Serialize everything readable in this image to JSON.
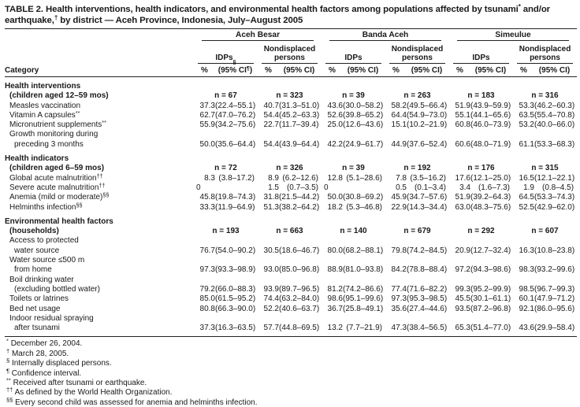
{
  "colors": {
    "ink": "#191919",
    "background": "#ffffff",
    "rule": "#222222"
  },
  "title": {
    "line1": [
      {
        "t": "TABLE 2. Health interventions, health indicators, and environmental health factors among populations affected by tsunami"
      },
      {
        "sup": "*"
      },
      {
        "t": " and/or"
      }
    ],
    "line2": [
      {
        "t": "earthquake,"
      },
      {
        "sup": "†"
      },
      {
        "t": " by district — Aceh Province, Indonesia, July–August 2005"
      }
    ]
  },
  "table": {
    "groups": [
      {
        "name": "Aceh Besar",
        "subgroups": [
          {
            "segments": [
              {
                "t": "IDPs"
              },
              {
                "sup": "§"
              }
            ]
          },
          {
            "segments": [
              {
                "t": "Nondisplaced persons"
              }
            ]
          }
        ]
      },
      {
        "name": "Banda Aceh",
        "subgroups": [
          {
            "segments": [
              {
                "t": "IDPs"
              }
            ]
          },
          {
            "segments": [
              {
                "t": "Nondisplaced persons"
              }
            ]
          }
        ]
      },
      {
        "name": "Simeulue",
        "subgroups": [
          {
            "segments": [
              {
                "t": "IDPs"
              }
            ]
          },
          {
            "segments": [
              {
                "t": "Nondisplaced persons"
              }
            ]
          }
        ]
      }
    ],
    "columns": {
      "category_label": "Category",
      "pct_label": "%",
      "ci_label": "(95% CI)",
      "ci_label_first": [
        {
          "t": "(95% CI"
        },
        {
          "sup": "¶"
        },
        {
          "t": ")"
        }
      ]
    },
    "sections": [
      {
        "header": "Health interventions",
        "subheader": "(children aged 12–59 mos)",
        "n": [
          "n = 67",
          "n = 323",
          "n = 39",
          "n = 263",
          "n = 183",
          "n = 316"
        ],
        "rows": [
          {
            "lines": [
              "Measles vaccination"
            ],
            "values": [
              [
                "37.3",
                "(22.4–55.1)"
              ],
              [
                "40.7",
                "(31.3–51.0)"
              ],
              [
                "43.6",
                "(30.0–58.2)"
              ],
              [
                "58.2",
                "(49.5–66.4)"
              ],
              [
                "51.9",
                "(43.9–59.9)"
              ],
              [
                "53.3",
                "(46.2–60.3)"
              ]
            ]
          },
          {
            "lines": [
              "Vitamin A capsules"
            ],
            "sup": "**",
            "values": [
              [
                "62.7",
                "(47.0–76.2)"
              ],
              [
                "54.4",
                "(45.2–63.3)"
              ],
              [
                "52.6",
                "(39.8–65.2)"
              ],
              [
                "64.4",
                "(54.9–73.0)"
              ],
              [
                "55.1",
                "(44.1–65.6)"
              ],
              [
                "63.5",
                "(55.4–70.8)"
              ]
            ]
          },
          {
            "lines": [
              "Micronutrient supplements"
            ],
            "sup": "**",
            "values": [
              [
                "55.9",
                "(34.2–75.6)"
              ],
              [
                "22.7",
                "(11.7–39.4)"
              ],
              [
                "25.0",
                "(12.6–43.6)"
              ],
              [
                "15.1",
                "(10.2–21.9)"
              ],
              [
                "60.8",
                "(46.0–73.9)"
              ],
              [
                "53.2",
                "(40.0–66.0)"
              ]
            ]
          },
          {
            "lines": [
              "Growth monitoring during",
              "preceding 3 months"
            ],
            "values": [
              [
                "50.0",
                "(35.6–64.4)"
              ],
              [
                "54.4",
                "(43.9–64.4)"
              ],
              [
                "42.2",
                "(24.9–61.7)"
              ],
              [
                "44.9",
                "(37.6–52.4)"
              ],
              [
                "60.6",
                "(48.0–71.9)"
              ],
              [
                "61.1",
                "(53.3–68.3)"
              ]
            ]
          }
        ]
      },
      {
        "header": "Health indicators",
        "subheader": "(children aged 6–59 mos)",
        "n": [
          "n = 72",
          "n = 326",
          "n = 39",
          "n = 192",
          "n = 176",
          "n = 315"
        ],
        "rows": [
          {
            "lines": [
              "Global acute malnutrition"
            ],
            "sup": "††",
            "values": [
              [
                "8.3",
                "(3.8–17.2)"
              ],
              [
                "8.9",
                "(6.2–12.6)"
              ],
              [
                "12.8",
                "(5.1–28.6)"
              ],
              [
                "7.8",
                "(3.5–16.2)"
              ],
              [
                "17.6",
                "(12.1–25.0)"
              ],
              [
                "16.5",
                "(12.1–22.1)"
              ]
            ]
          },
          {
            "lines": [
              "Severe acute malnutrition"
            ],
            "sup": "††",
            "values": [
              [
                "0",
                ""
              ],
              [
                "1.5",
                "(0.7–3.5)"
              ],
              [
                "0",
                ""
              ],
              [
                "0.5",
                "(0.1–3.4)"
              ],
              [
                "3.4",
                "(1.6–7.3)"
              ],
              [
                "1.9",
                "(0.8–4.5)"
              ]
            ]
          },
          {
            "lines": [
              "Anemia (mild or moderate)"
            ],
            "sup": "§§",
            "values": [
              [
                "45.8",
                "(19.8–74.3)"
              ],
              [
                "31.8",
                "(21.5–44.2)"
              ],
              [
                "50.0",
                "(30.8–69.2)"
              ],
              [
                "45.9",
                "(34.7–57.6)"
              ],
              [
                "51.9",
                "(39.2–64.3)"
              ],
              [
                "64.5",
                "(53.3–74.3)"
              ]
            ]
          },
          {
            "lines": [
              "Helminths infection"
            ],
            "sup": "§§",
            "values": [
              [
                "33.3",
                "(11.9–64.9)"
              ],
              [
                "51.3",
                "(38.2–64.2)"
              ],
              [
                "18.2",
                "(5.3–46.8)"
              ],
              [
                "22.9",
                "(14.3–34.4)"
              ],
              [
                "63.0",
                "(48.3–75.6)"
              ],
              [
                "52.5",
                "(42.9–62.0)"
              ]
            ]
          }
        ]
      },
      {
        "header": "Environmental health factors",
        "subheader": "(households)",
        "n": [
          "n = 193",
          "n = 663",
          "n = 140",
          "n = 679",
          "n = 292",
          "n = 607"
        ],
        "rows": [
          {
            "lines": [
              "Access to protected",
              "water source"
            ],
            "values": [
              [
                "76.7",
                "(54.0–90.2)"
              ],
              [
                "30.5",
                "(18.6–46.7)"
              ],
              [
                "80.0",
                "(68.2–88.1)"
              ],
              [
                "79.8",
                "(74.2–84.5)"
              ],
              [
                "20.9",
                "(12.7–32.4)"
              ],
              [
                "16.3",
                "(10.8–23.8)"
              ]
            ]
          },
          {
            "lines": [
              "Water source ≤500 m",
              "from home"
            ],
            "values": [
              [
                "97.3",
                "(93.3–98.9)"
              ],
              [
                "93.0",
                "(85.0–96.8)"
              ],
              [
                "88.9",
                "(81.0–93.8)"
              ],
              [
                "84.2",
                "(78.8–88.4)"
              ],
              [
                "97.2",
                "(94.3–98.6)"
              ],
              [
                "98.3",
                "(93.2–99.6)"
              ]
            ]
          },
          {
            "lines": [
              "Boil drinking water",
              "(excluding bottled water)"
            ],
            "values": [
              [
                "79.2",
                "(66.0–88.3)"
              ],
              [
                "93.9",
                "(89.7–96.5)"
              ],
              [
                "81.2",
                "(74.2–86.6)"
              ],
              [
                "77.4",
                "(71.6–82.2)"
              ],
              [
                "99.3",
                "(95.2–99.9)"
              ],
              [
                "98.5",
                "(96.7–99.3)"
              ]
            ]
          },
          {
            "lines": [
              "Toilets or latrines"
            ],
            "values": [
              [
                "85.0",
                "(61.5–95.2)"
              ],
              [
                "74.4",
                "(63.2–84.0)"
              ],
              [
                "98.6",
                "(95.1–99.6)"
              ],
              [
                "97.3",
                "(95.3–98.5)"
              ],
              [
                "45.5",
                "(30.1–61.1)"
              ],
              [
                "60.1",
                "(47.9–71.2)"
              ]
            ]
          },
          {
            "lines": [
              "Bed net usage"
            ],
            "values": [
              [
                "80.8",
                "(66.3–90.0)"
              ],
              [
                "52.2",
                "(40.6–63.7)"
              ],
              [
                "36.7",
                "(25.8–49.1)"
              ],
              [
                "35.6",
                "(27.4–44.6)"
              ],
              [
                "93.5",
                "(87.2–96.8)"
              ],
              [
                "92.1",
                "(86.0–95.6)"
              ]
            ]
          },
          {
            "lines": [
              "Indoor residual spraying",
              "after tsunami"
            ],
            "values": [
              [
                "37.3",
                "(16.3–63.5)"
              ],
              [
                "57.7",
                "(44.8–69.5)"
              ],
              [
                "13.2",
                "(7.7–21.9)"
              ],
              [
                "47.3",
                "(38.4–56.5)"
              ],
              [
                "65.3",
                "(51.4–77.0)"
              ],
              [
                "43.6",
                "(29.9–58.4)"
              ]
            ]
          }
        ]
      }
    ]
  },
  "footnotes": [
    {
      "sup": "*",
      "text": "December 26, 2004."
    },
    {
      "sup": "†",
      "text": "March 28, 2005."
    },
    {
      "sup": "§",
      "text": "Internally displaced persons."
    },
    {
      "sup": "¶",
      "text": "Confidence interval."
    },
    {
      "sup": "**",
      "text": "Received after tsunami or earthquake."
    },
    {
      "sup": "††",
      "text": "As defined by the World Health Organization."
    },
    {
      "sup": "§§",
      "text": "Every second child was assessed for anemia and helminths infection."
    }
  ]
}
